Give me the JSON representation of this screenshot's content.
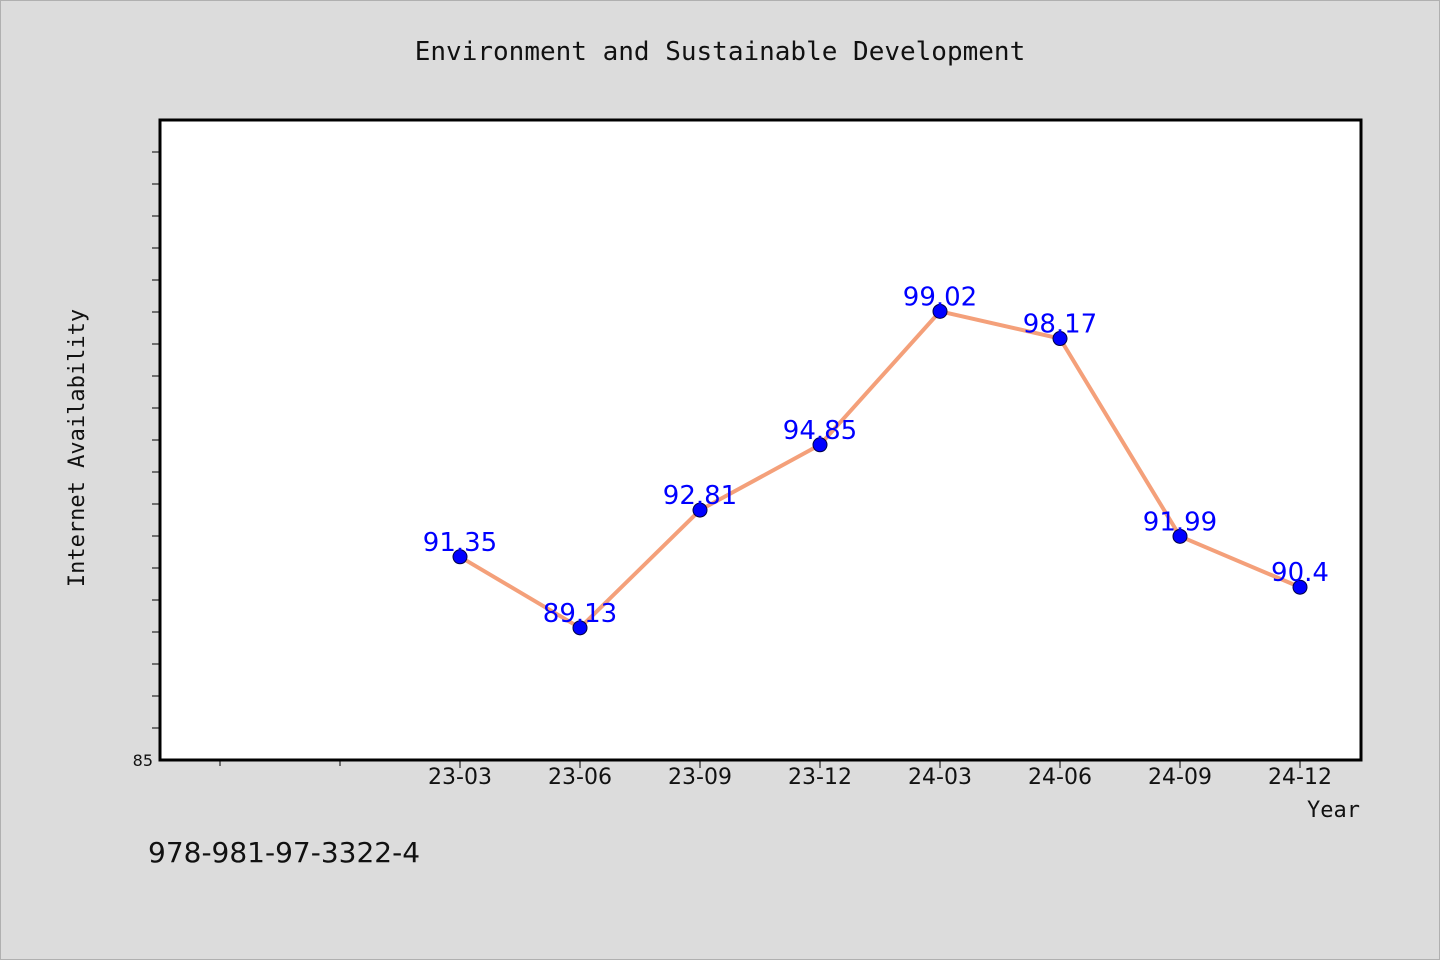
{
  "chart_data": {
    "type": "line",
    "title": "Environment and Sustainable Development",
    "xlabel": "Year",
    "ylabel": "Internet Availability",
    "categories": [
      "23-03",
      "23-06",
      "23-09",
      "23-12",
      "24-03",
      "24-06",
      "24-09",
      "24-12"
    ],
    "series": [
      {
        "values": [
          91.35,
          89.13,
          92.81,
          94.85,
          99.02,
          98.17,
          91.99,
          90.4
        ]
      }
    ],
    "data_labels": [
      "91.35",
      "89.13",
      "92.81",
      "94.85",
      "99.02",
      "98.17",
      "91.99",
      "90.4"
    ],
    "ylim": [
      85,
      105
    ],
    "y_tick_label": "85",
    "grid": false,
    "legend": "none",
    "colors": {
      "line": "#f4a07a",
      "marker": "#0000ff",
      "label": "#0000ff",
      "background": "#dcdcdc",
      "plot_background": "#ffffff"
    }
  },
  "footer": {
    "isbn": "978-981-97-3322-4"
  }
}
